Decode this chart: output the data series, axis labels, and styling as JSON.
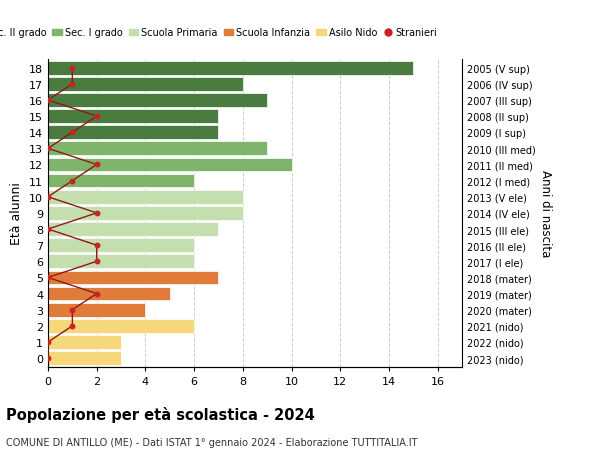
{
  "ages": [
    18,
    17,
    16,
    15,
    14,
    13,
    12,
    11,
    10,
    9,
    8,
    7,
    6,
    5,
    4,
    3,
    2,
    1,
    0
  ],
  "right_labels_by_age": {
    "18": "2005 (V sup)",
    "17": "2006 (IV sup)",
    "16": "2007 (III sup)",
    "15": "2008 (II sup)",
    "14": "2009 (I sup)",
    "13": "2010 (III med)",
    "12": "2011 (II med)",
    "11": "2012 (I med)",
    "10": "2013 (V ele)",
    "9": "2014 (IV ele)",
    "8": "2015 (III ele)",
    "7": "2016 (II ele)",
    "6": "2017 (I ele)",
    "5": "2018 (mater)",
    "4": "2019 (mater)",
    "3": "2020 (mater)",
    "2": "2021 (nido)",
    "1": "2022 (nido)",
    "0": "2023 (nido)"
  },
  "bar_values_by_age": {
    "18": 15,
    "17": 8,
    "16": 9,
    "15": 7,
    "14": 7,
    "13": 9,
    "12": 10,
    "11": 6,
    "10": 8,
    "9": 8,
    "8": 7,
    "7": 6,
    "6": 6,
    "5": 7,
    "4": 5,
    "3": 4,
    "2": 6,
    "1": 3,
    "0": 3
  },
  "bar_colors_by_age": {
    "18": "#4a7c3f",
    "17": "#4a7c3f",
    "16": "#4a7c3f",
    "15": "#4a7c3f",
    "14": "#4a7c3f",
    "13": "#7eb56a",
    "12": "#7eb56a",
    "11": "#7eb56a",
    "10": "#c5deb0",
    "9": "#c5deb0",
    "8": "#c5deb0",
    "7": "#c5deb0",
    "6": "#c5deb0",
    "5": "#e07b3a",
    "4": "#e07b3a",
    "3": "#e07b3a",
    "2": "#f5d87a",
    "1": "#f5d87a",
    "0": "#f5d87a"
  },
  "stranieri_by_age": {
    "18": 1,
    "17": 1,
    "16": 0,
    "15": 2,
    "14": 1,
    "13": 0,
    "12": 2,
    "11": 1,
    "10": 0,
    "9": 2,
    "8": 0,
    "7": 2,
    "6": 2,
    "5": 0,
    "4": 2,
    "3": 1,
    "2": 1,
    "1": 0,
    "0": 0
  },
  "legend_labels": [
    "Sec. II grado",
    "Sec. I grado",
    "Scuola Primaria",
    "Scuola Infanzia",
    "Asilo Nido",
    "Stranieri"
  ],
  "legend_colors": [
    "#4a7c3f",
    "#7eb56a",
    "#c5deb0",
    "#e07b3a",
    "#f5d87a",
    "#cc2222"
  ],
  "ylabel": "Età alunni",
  "right_ylabel": "Anni di nascita",
  "title": "Popolazione per età scolastica - 2024",
  "subtitle": "COMUNE DI ANTILLO (ME) - Dati ISTAT 1° gennaio 2024 - Elaborazione TUTTITALIA.IT",
  "xlim": [
    0,
    17
  ],
  "xticks": [
    0,
    2,
    4,
    6,
    8,
    10,
    12,
    14,
    16
  ],
  "background_color": "#ffffff",
  "grid_color": "#cccccc"
}
